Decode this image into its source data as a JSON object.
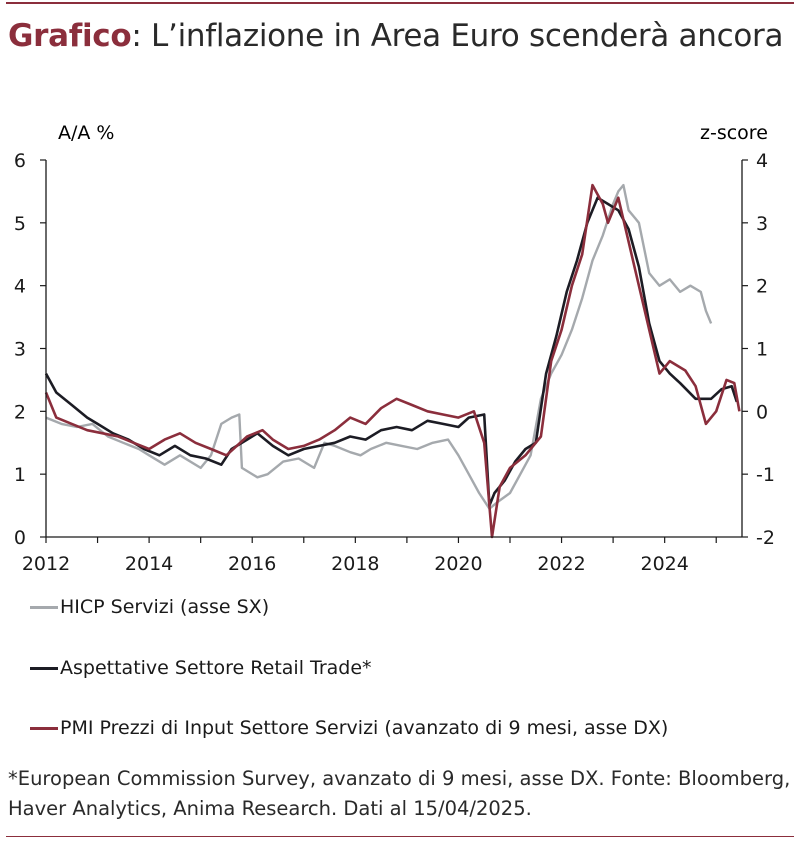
{
  "title": {
    "strong": "Grafico",
    "rest": ": L’inflazione in Area Euro scenderà ancora"
  },
  "note": "*European Commission Survey, avanzato di 9 mesi, asse DX. Fonte: Bloomberg, Haver Analytics, Anima Research. Dati al 15/04/2025.",
  "chart_data": {
    "type": "line",
    "ylabel_left": "A/A %",
    "ylabel_right": "z-score",
    "xlim": [
      2012,
      2025.5
    ],
    "ylim_left": [
      0,
      6
    ],
    "ylim_right": [
      -2,
      4
    ],
    "x_ticks": [
      "2012",
      "2014",
      "2016",
      "2018",
      "2020",
      "2022",
      "2024"
    ],
    "y_left_ticks": [
      "0",
      "1",
      "2",
      "3",
      "4",
      "5",
      "6"
    ],
    "y_right_ticks": [
      "-2",
      "-1",
      "0",
      "1",
      "2",
      "3",
      "4"
    ],
    "grid": false,
    "legend_position": "bottom",
    "series": [
      {
        "name": "HICP Servizi (asse SX)",
        "axis": "left",
        "color": "#a5a9ad",
        "points": [
          [
            2012.0,
            1.9
          ],
          [
            2012.3,
            1.8
          ],
          [
            2012.6,
            1.75
          ],
          [
            2012.9,
            1.8
          ],
          [
            2013.2,
            1.6
          ],
          [
            2013.5,
            1.5
          ],
          [
            2013.8,
            1.4
          ],
          [
            2014.0,
            1.3
          ],
          [
            2014.3,
            1.15
          ],
          [
            2014.6,
            1.3
          ],
          [
            2015.0,
            1.1
          ],
          [
            2015.2,
            1.3
          ],
          [
            2015.4,
            1.8
          ],
          [
            2015.6,
            1.9
          ],
          [
            2015.75,
            1.95
          ],
          [
            2015.8,
            1.1
          ],
          [
            2016.1,
            0.95
          ],
          [
            2016.3,
            1.0
          ],
          [
            2016.6,
            1.2
          ],
          [
            2016.9,
            1.25
          ],
          [
            2017.2,
            1.1
          ],
          [
            2017.4,
            1.5
          ],
          [
            2017.6,
            1.45
          ],
          [
            2017.9,
            1.35
          ],
          [
            2018.1,
            1.3
          ],
          [
            2018.3,
            1.4
          ],
          [
            2018.6,
            1.5
          ],
          [
            2018.9,
            1.45
          ],
          [
            2019.2,
            1.4
          ],
          [
            2019.5,
            1.5
          ],
          [
            2019.8,
            1.55
          ],
          [
            2020.0,
            1.3
          ],
          [
            2020.2,
            1.0
          ],
          [
            2020.4,
            0.7
          ],
          [
            2020.6,
            0.45
          ],
          [
            2020.75,
            0.55
          ],
          [
            2021.0,
            0.7
          ],
          [
            2021.2,
            1.0
          ],
          [
            2021.4,
            1.3
          ],
          [
            2021.6,
            2.2
          ],
          [
            2021.8,
            2.6
          ],
          [
            2022.0,
            2.9
          ],
          [
            2022.2,
            3.3
          ],
          [
            2022.4,
            3.8
          ],
          [
            2022.6,
            4.4
          ],
          [
            2022.8,
            4.8
          ],
          [
            2023.0,
            5.3
          ],
          [
            2023.1,
            5.5
          ],
          [
            2023.2,
            5.6
          ],
          [
            2023.3,
            5.2
          ],
          [
            2023.5,
            5.0
          ],
          [
            2023.7,
            4.2
          ],
          [
            2023.9,
            4.0
          ],
          [
            2024.1,
            4.1
          ],
          [
            2024.3,
            3.9
          ],
          [
            2024.5,
            4.0
          ],
          [
            2024.7,
            3.9
          ],
          [
            2024.8,
            3.6
          ],
          [
            2024.9,
            3.4
          ]
        ]
      },
      {
        "name": "Aspettative Settore Retail Trade*",
        "axis": "right",
        "color": "#1c1c24",
        "points": [
          [
            2012.0,
            0.6
          ],
          [
            2012.2,
            0.3
          ],
          [
            2012.5,
            0.1
          ],
          [
            2012.8,
            -0.1
          ],
          [
            2013.0,
            -0.2
          ],
          [
            2013.3,
            -0.35
          ],
          [
            2013.6,
            -0.45
          ],
          [
            2013.9,
            -0.6
          ],
          [
            2014.2,
            -0.7
          ],
          [
            2014.5,
            -0.55
          ],
          [
            2014.8,
            -0.7
          ],
          [
            2015.1,
            -0.75
          ],
          [
            2015.4,
            -0.85
          ],
          [
            2015.6,
            -0.6
          ],
          [
            2015.9,
            -0.45
          ],
          [
            2016.1,
            -0.35
          ],
          [
            2016.4,
            -0.55
          ],
          [
            2016.7,
            -0.7
          ],
          [
            2017.0,
            -0.6
          ],
          [
            2017.3,
            -0.55
          ],
          [
            2017.6,
            -0.5
          ],
          [
            2017.9,
            -0.4
          ],
          [
            2018.2,
            -0.45
          ],
          [
            2018.5,
            -0.3
          ],
          [
            2018.8,
            -0.25
          ],
          [
            2019.1,
            -0.3
          ],
          [
            2019.4,
            -0.15
          ],
          [
            2019.7,
            -0.2
          ],
          [
            2020.0,
            -0.25
          ],
          [
            2020.2,
            -0.1
          ],
          [
            2020.5,
            -0.05
          ],
          [
            2020.6,
            -1.5
          ],
          [
            2020.7,
            -1.3
          ],
          [
            2020.9,
            -1.1
          ],
          [
            2021.1,
            -0.8
          ],
          [
            2021.3,
            -0.6
          ],
          [
            2021.5,
            -0.5
          ],
          [
            2021.7,
            0.6
          ],
          [
            2021.9,
            1.2
          ],
          [
            2022.1,
            1.9
          ],
          [
            2022.3,
            2.4
          ],
          [
            2022.5,
            3.0
          ],
          [
            2022.7,
            3.4
          ],
          [
            2022.9,
            3.3
          ],
          [
            2023.1,
            3.2
          ],
          [
            2023.3,
            2.9
          ],
          [
            2023.5,
            2.3
          ],
          [
            2023.7,
            1.4
          ],
          [
            2023.9,
            0.8
          ],
          [
            2024.1,
            0.6
          ],
          [
            2024.3,
            0.45
          ],
          [
            2024.6,
            0.2
          ],
          [
            2024.9,
            0.2
          ],
          [
            2025.1,
            0.35
          ],
          [
            2025.3,
            0.4
          ],
          [
            2025.4,
            0.15
          ]
        ]
      },
      {
        "name": "PMI Prezzi di Input Settore Servizi (avanzato di 9 mesi, asse DX)",
        "axis": "right",
        "color": "#8b2e3c",
        "points": [
          [
            2012.0,
            0.3
          ],
          [
            2012.2,
            -0.1
          ],
          [
            2012.5,
            -0.2
          ],
          [
            2012.8,
            -0.3
          ],
          [
            2013.1,
            -0.35
          ],
          [
            2013.4,
            -0.4
          ],
          [
            2013.7,
            -0.5
          ],
          [
            2014.0,
            -0.6
          ],
          [
            2014.3,
            -0.45
          ],
          [
            2014.6,
            -0.35
          ],
          [
            2014.9,
            -0.5
          ],
          [
            2015.2,
            -0.6
          ],
          [
            2015.5,
            -0.7
          ],
          [
            2015.7,
            -0.55
          ],
          [
            2015.9,
            -0.4
          ],
          [
            2016.2,
            -0.3
          ],
          [
            2016.4,
            -0.45
          ],
          [
            2016.7,
            -0.6
          ],
          [
            2017.0,
            -0.55
          ],
          [
            2017.3,
            -0.45
          ],
          [
            2017.6,
            -0.3
          ],
          [
            2017.9,
            -0.1
          ],
          [
            2018.2,
            -0.2
          ],
          [
            2018.5,
            0.05
          ],
          [
            2018.8,
            0.2
          ],
          [
            2019.1,
            0.1
          ],
          [
            2019.4,
            0.0
          ],
          [
            2019.7,
            -0.05
          ],
          [
            2020.0,
            -0.1
          ],
          [
            2020.3,
            0.0
          ],
          [
            2020.5,
            -0.5
          ],
          [
            2020.65,
            -2.0
          ],
          [
            2020.8,
            -1.2
          ],
          [
            2021.0,
            -0.9
          ],
          [
            2021.3,
            -0.7
          ],
          [
            2021.6,
            -0.4
          ],
          [
            2021.8,
            0.8
          ],
          [
            2022.0,
            1.3
          ],
          [
            2022.2,
            2.0
          ],
          [
            2022.4,
            2.5
          ],
          [
            2022.6,
            3.6
          ],
          [
            2022.8,
            3.3
          ],
          [
            2022.9,
            3.0
          ],
          [
            2023.1,
            3.4
          ],
          [
            2023.3,
            2.7
          ],
          [
            2023.5,
            2.0
          ],
          [
            2023.7,
            1.3
          ],
          [
            2023.9,
            0.6
          ],
          [
            2024.1,
            0.8
          ],
          [
            2024.4,
            0.65
          ],
          [
            2024.6,
            0.4
          ],
          [
            2024.8,
            -0.2
          ],
          [
            2025.0,
            0.0
          ],
          [
            2025.2,
            0.5
          ],
          [
            2025.35,
            0.45
          ],
          [
            2025.45,
            0.0
          ]
        ]
      }
    ]
  }
}
